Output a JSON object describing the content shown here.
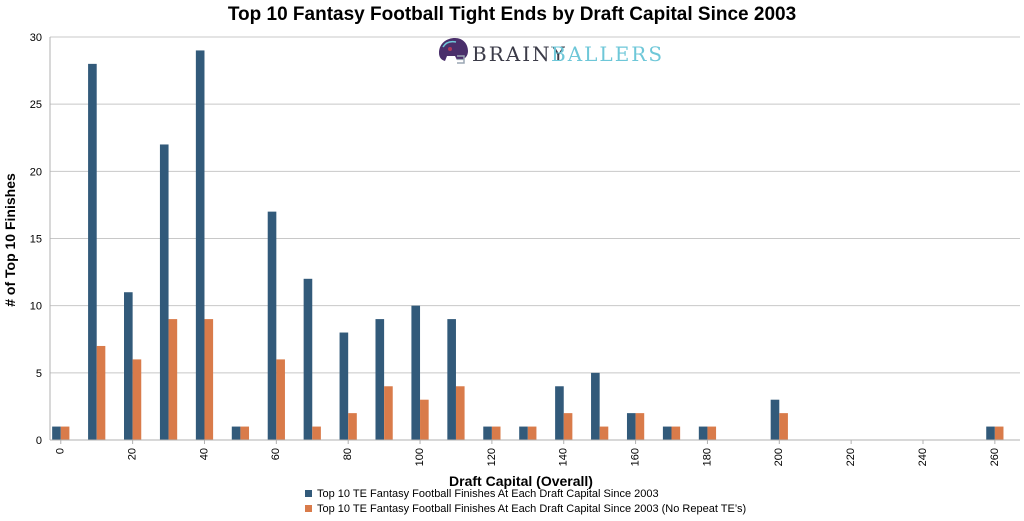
{
  "chart_data": {
    "type": "bar",
    "title": "Top 10 Fantasy Football Tight Ends by Draft Capital Since 2003",
    "xlabel": "Draft Capital (Overall)",
    "ylabel": "# of Top 10 Finishes",
    "ylim": [
      0,
      30
    ],
    "yticks": [
      0,
      5,
      10,
      15,
      20,
      25,
      30
    ],
    "xlim": [
      -3,
      267
    ],
    "xticks": [
      0,
      20,
      40,
      60,
      80,
      100,
      120,
      140,
      160,
      180,
      200,
      220,
      240,
      260
    ],
    "grid": true,
    "legend_position": "bottom",
    "bin_width": 10,
    "series": [
      {
        "name": "Top 10 TE Fantasy Football Finishes At Each Draft Capital Since 2003",
        "color": "#325a7a",
        "points": [
          {
            "x": 0,
            "y": 1
          },
          {
            "x": 10,
            "y": 28
          },
          {
            "x": 20,
            "y": 11
          },
          {
            "x": 30,
            "y": 22
          },
          {
            "x": 40,
            "y": 29
          },
          {
            "x": 50,
            "y": 1
          },
          {
            "x": 60,
            "y": 17
          },
          {
            "x": 70,
            "y": 12
          },
          {
            "x": 80,
            "y": 8
          },
          {
            "x": 90,
            "y": 9
          },
          {
            "x": 100,
            "y": 10
          },
          {
            "x": 110,
            "y": 9
          },
          {
            "x": 120,
            "y": 1
          },
          {
            "x": 130,
            "y": 1
          },
          {
            "x": 140,
            "y": 4
          },
          {
            "x": 150,
            "y": 5
          },
          {
            "x": 160,
            "y": 2
          },
          {
            "x": 170,
            "y": 1
          },
          {
            "x": 180,
            "y": 1
          },
          {
            "x": 200,
            "y": 3
          },
          {
            "x": 260,
            "y": 1
          }
        ]
      },
      {
        "name": "Top 10 TE Fantasy Football Finishes At Each Draft Capital Since 2003 (No Repeat TE’s)",
        "color": "#d97b4a",
        "points": [
          {
            "x": 0,
            "y": 1
          },
          {
            "x": 10,
            "y": 7
          },
          {
            "x": 20,
            "y": 6
          },
          {
            "x": 30,
            "y": 9
          },
          {
            "x": 40,
            "y": 9
          },
          {
            "x": 50,
            "y": 1
          },
          {
            "x": 60,
            "y": 6
          },
          {
            "x": 70,
            "y": 1
          },
          {
            "x": 80,
            "y": 2
          },
          {
            "x": 90,
            "y": 4
          },
          {
            "x": 100,
            "y": 3
          },
          {
            "x": 110,
            "y": 4
          },
          {
            "x": 120,
            "y": 1
          },
          {
            "x": 130,
            "y": 1
          },
          {
            "x": 140,
            "y": 2
          },
          {
            "x": 150,
            "y": 1
          },
          {
            "x": 160,
            "y": 2
          },
          {
            "x": 170,
            "y": 1
          },
          {
            "x": 180,
            "y": 1
          },
          {
            "x": 200,
            "y": 2
          },
          {
            "x": 260,
            "y": 1
          }
        ]
      }
    ]
  },
  "logo": {
    "text_left": "BRAINY",
    "text_right": "BALLERS",
    "icon": "football-helmet-icon"
  },
  "colors": {
    "grid": "#c8c8c8",
    "axis": "#b0b0b0",
    "brand_dark": "#3b3b48",
    "brand_accent": "#6ec7d8"
  }
}
